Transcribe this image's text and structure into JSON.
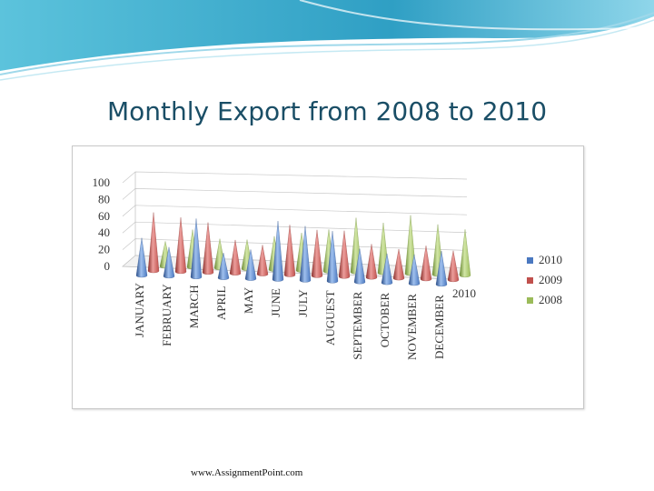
{
  "slide": {
    "title": "Monthly Export from 2008 to 2010",
    "footer": "www.AssignmentPoint.com"
  },
  "colors": {
    "series_2010": "#4a78c0",
    "series_2009": "#c0504d",
    "series_2008": "#9bbb59",
    "title": "#1a4e66",
    "header_wave": "#3aa8c8"
  },
  "chart_data": {
    "type": "bar",
    "style": "3d-cone",
    "title": "",
    "categories": [
      "JANUARY",
      "FEBRUARY",
      "MARCH",
      "APRIL",
      "MAY",
      "JUNE",
      "JULY",
      "AUGUEST",
      "SEPTEMBER",
      "OCTOBER",
      "NOVEMBER",
      "DECEMBER"
    ],
    "series": [
      {
        "name": "2010",
        "values": [
          45,
          35,
          70,
          30,
          35,
          70,
          65,
          60,
          40,
          35,
          35,
          40
        ]
      },
      {
        "name": "2009",
        "values": [
          70,
          65,
          60,
          40,
          35,
          60,
          55,
          55,
          40,
          35,
          40,
          35
        ]
      },
      {
        "name": "2008",
        "values": [
          30,
          45,
          35,
          35,
          40,
          45,
          50,
          65,
          60,
          70,
          60,
          55
        ]
      }
    ],
    "depth_axis_labels": [
      "2010"
    ],
    "yticks": [
      0,
      20,
      40,
      60,
      80,
      100
    ],
    "ylim": [
      0,
      100
    ],
    "grid": true,
    "legend": "right"
  }
}
